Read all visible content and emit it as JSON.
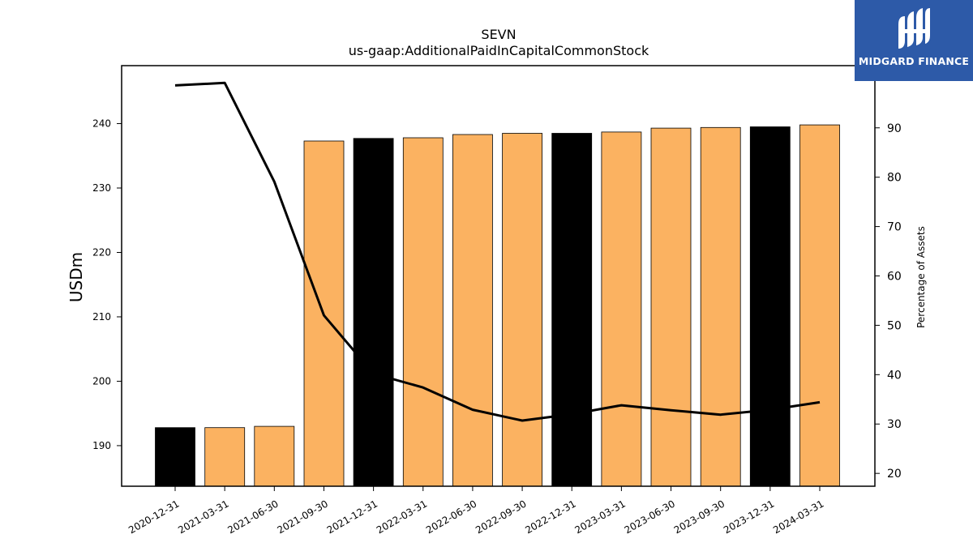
{
  "chart_data": {
    "type": "bar",
    "title": "SEVN",
    "subtitle": "us-gaap:AdditionalPaidInCapitalCommonStock",
    "ylabel": "USDm",
    "y2label": "Percentage of Assets",
    "categories": [
      "2020-12-31",
      "2021-03-31",
      "2021-06-30",
      "2021-09-30",
      "2021-12-31",
      "2022-03-31",
      "2022-06-30",
      "2022-09-30",
      "2022-12-31",
      "2023-03-31",
      "2023-06-30",
      "2023-09-30",
      "2023-12-31",
      "2024-03-31"
    ],
    "values": [
      192.8,
      192.8,
      193.0,
      237.3,
      237.7,
      237.8,
      238.3,
      238.5,
      238.5,
      238.7,
      239.3,
      239.4,
      239.5,
      239.8
    ],
    "bar_colors": [
      "#000000",
      "#fbb261",
      "#fbb261",
      "#fbb261",
      "#000000",
      "#fbb261",
      "#fbb261",
      "#fbb261",
      "#000000",
      "#fbb261",
      "#fbb261",
      "#fbb261",
      "#000000",
      "#fbb261"
    ],
    "ylim": [
      183.7,
      249.0
    ],
    "yticks": [
      190,
      200,
      210,
      220,
      230,
      240
    ],
    "series": [
      {
        "type": "line",
        "axis": "right",
        "color": "#000000",
        "values": [
          98.6,
          99.1,
          79.1,
          52.0,
          40.2,
          37.4,
          32.9,
          30.7,
          32.0,
          33.8,
          32.8,
          31.9,
          32.9,
          34.4
        ]
      }
    ],
    "y2lim": [
      17.4,
      102.6
    ],
    "y2ticks": [
      20,
      30,
      40,
      50,
      60,
      70,
      80,
      90
    ],
    "grid": false,
    "legend": "none"
  },
  "logo": {
    "text": "MIDGARD FINANCE",
    "background": "#2d5aa8"
  }
}
